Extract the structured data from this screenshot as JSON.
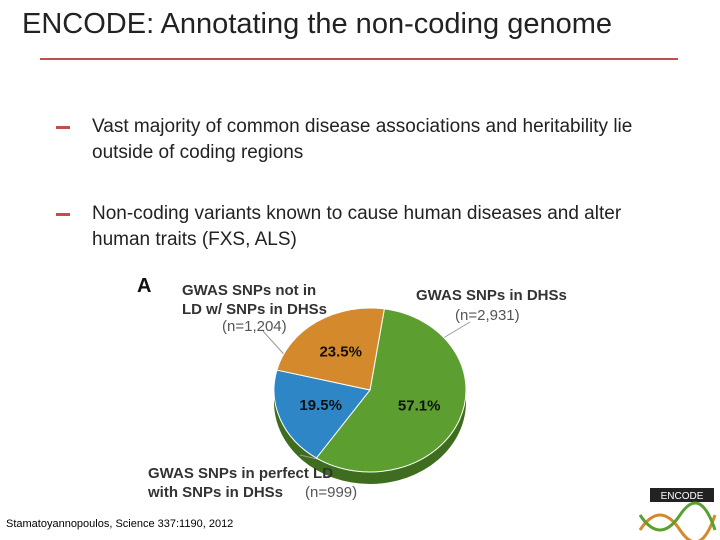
{
  "title": "ENCODE: Annotating the non-coding genome",
  "bullets": [
    "Vast majority of common disease associations and heritability lie outside of coding regions",
    "Non-coding variants known to cause human diseases and alter human traits (FXS, ALS)"
  ],
  "chart_data": {
    "type": "pie",
    "panel_label": "A",
    "categories": [
      "GWAS SNPs in DHSs",
      "GWAS SNPs in perfect LD with SNPs in DHSs",
      "GWAS SNPs not in LD w/ SNPs in DHSs"
    ],
    "values": [
      57.1,
      19.5,
      23.5
    ],
    "value_labels": [
      "57.1%",
      "19.5%",
      "23.5%"
    ],
    "colors": [
      "#5c9f30",
      "#2f86c6",
      "#d48a2c"
    ],
    "annotations": [
      "GWAS SNPs not in",
      "LD w/ SNPs in DHSs",
      "(n=1,204)",
      "GWAS SNPs in DHSs",
      "(n=2,931)",
      "GWAS SNPs in perfect LD",
      "with SNPs in DHSs",
      "(n=999)"
    ]
  },
  "citation": "Stamatoyannopoulos, Science 337:1190, 2012",
  "logo": "ENCODE"
}
